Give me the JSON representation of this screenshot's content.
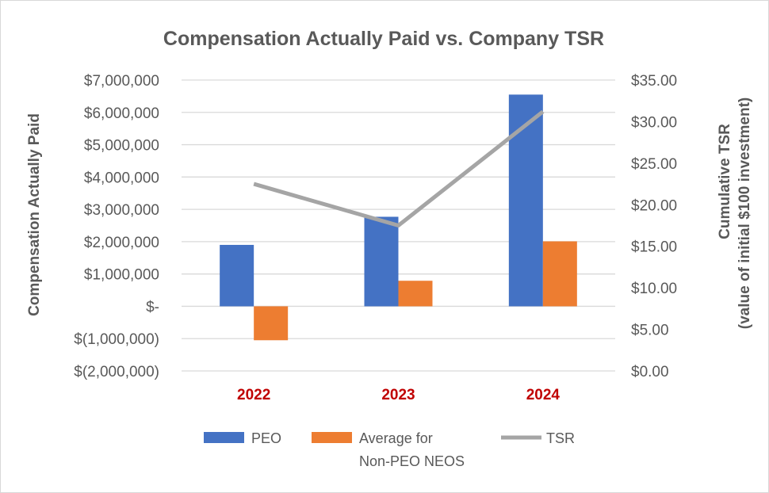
{
  "chart_data": {
    "type": "bar",
    "title": "Compensation Actually Paid vs. Company TSR",
    "categories": [
      "2022",
      "2023",
      "2024"
    ],
    "category_color": "#c00000",
    "y_left": {
      "label": "Compensation Actually Paid",
      "lim": [
        -2000000,
        7000000
      ],
      "ticks": [
        7000000,
        6000000,
        5000000,
        4000000,
        3000000,
        2000000,
        1000000,
        0,
        -1000000,
        -2000000
      ],
      "tick_labels": [
        "$7,000,000",
        "$6,000,000",
        "$5,000,000",
        "$4,000,000",
        "$3,000,000",
        "$2,000,000",
        "$1,000,000",
        "$-",
        "$(1,000,000)",
        "$(2,000,000)"
      ]
    },
    "y_right": {
      "label_line1": "Cumulative TSR",
      "label_line2": "(value of initial $100 investment)",
      "lim": [
        0,
        35
      ],
      "ticks": [
        35,
        30,
        25,
        20,
        15,
        10,
        5,
        0
      ],
      "tick_labels": [
        "$35.00",
        "$30.00",
        "$25.00",
        "$20.00",
        "$15.00",
        "$10.00",
        "$5.00",
        "$0.00"
      ]
    },
    "grid": true,
    "series": [
      {
        "name": "PEO",
        "type": "bar",
        "axis": "left",
        "color": "#4472c4",
        "values": [
          1900000,
          2770000,
          6550000
        ]
      },
      {
        "name_line1": "Average for",
        "name_line2": "Non-PEO NEOS",
        "type": "bar",
        "axis": "left",
        "color": "#ed7d31",
        "values": [
          -1050000,
          790000,
          2010000
        ]
      },
      {
        "name": "TSR",
        "type": "line",
        "axis": "right",
        "color": "#a5a5a5",
        "values": [
          22.5,
          17.5,
          31.2
        ]
      }
    ],
    "legend": {
      "position": "bottom",
      "peo": "PEO",
      "neo_line1": "Average for",
      "neo_line2": "Non-PEO NEOS",
      "tsr": "TSR"
    }
  }
}
